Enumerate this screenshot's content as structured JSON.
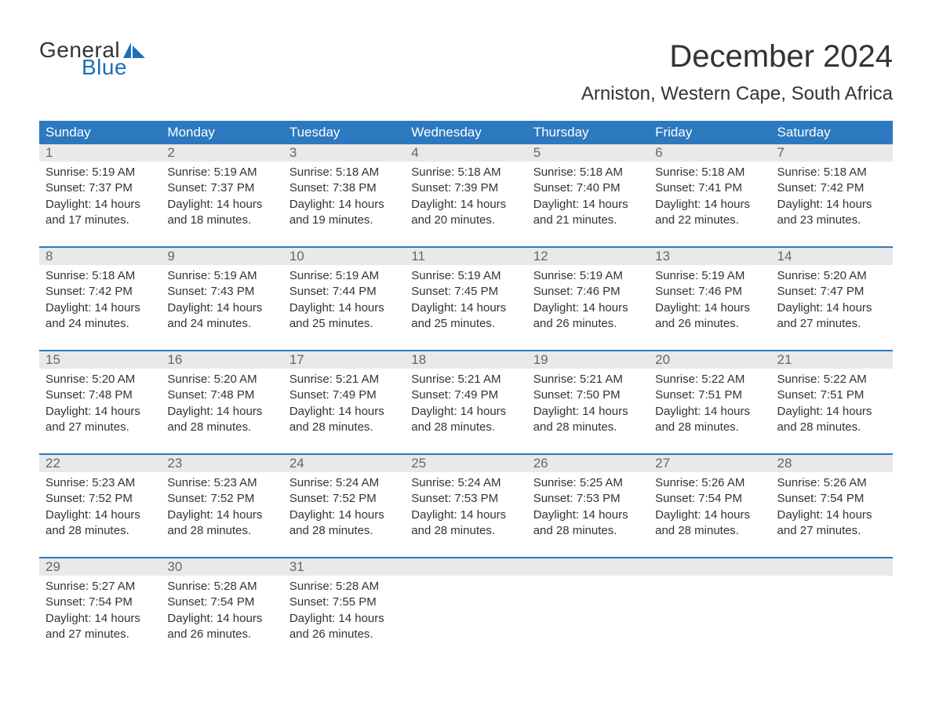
{
  "logo": {
    "text1": "General",
    "text2": "Blue",
    "flag_color": "#1c6fb8"
  },
  "title": "December 2024",
  "subtitle": "Arniston, Western Cape, South Africa",
  "header_bg": "#2d79c0",
  "header_fg": "#ffffff",
  "daynum_bg": "#e9e9e9",
  "daynum_fg": "#666666",
  "border_color": "#2d79c0",
  "text_color": "#333333",
  "day_headers": [
    "Sunday",
    "Monday",
    "Tuesday",
    "Wednesday",
    "Thursday",
    "Friday",
    "Saturday"
  ],
  "weeks": [
    [
      {
        "n": "1",
        "sunrise": "Sunrise: 5:19 AM",
        "sunset": "Sunset: 7:37 PM",
        "d1": "Daylight: 14 hours",
        "d2": "and 17 minutes."
      },
      {
        "n": "2",
        "sunrise": "Sunrise: 5:19 AM",
        "sunset": "Sunset: 7:37 PM",
        "d1": "Daylight: 14 hours",
        "d2": "and 18 minutes."
      },
      {
        "n": "3",
        "sunrise": "Sunrise: 5:18 AM",
        "sunset": "Sunset: 7:38 PM",
        "d1": "Daylight: 14 hours",
        "d2": "and 19 minutes."
      },
      {
        "n": "4",
        "sunrise": "Sunrise: 5:18 AM",
        "sunset": "Sunset: 7:39 PM",
        "d1": "Daylight: 14 hours",
        "d2": "and 20 minutes."
      },
      {
        "n": "5",
        "sunrise": "Sunrise: 5:18 AM",
        "sunset": "Sunset: 7:40 PM",
        "d1": "Daylight: 14 hours",
        "d2": "and 21 minutes."
      },
      {
        "n": "6",
        "sunrise": "Sunrise: 5:18 AM",
        "sunset": "Sunset: 7:41 PM",
        "d1": "Daylight: 14 hours",
        "d2": "and 22 minutes."
      },
      {
        "n": "7",
        "sunrise": "Sunrise: 5:18 AM",
        "sunset": "Sunset: 7:42 PM",
        "d1": "Daylight: 14 hours",
        "d2": "and 23 minutes."
      }
    ],
    [
      {
        "n": "8",
        "sunrise": "Sunrise: 5:18 AM",
        "sunset": "Sunset: 7:42 PM",
        "d1": "Daylight: 14 hours",
        "d2": "and 24 minutes."
      },
      {
        "n": "9",
        "sunrise": "Sunrise: 5:19 AM",
        "sunset": "Sunset: 7:43 PM",
        "d1": "Daylight: 14 hours",
        "d2": "and 24 minutes."
      },
      {
        "n": "10",
        "sunrise": "Sunrise: 5:19 AM",
        "sunset": "Sunset: 7:44 PM",
        "d1": "Daylight: 14 hours",
        "d2": "and 25 minutes."
      },
      {
        "n": "11",
        "sunrise": "Sunrise: 5:19 AM",
        "sunset": "Sunset: 7:45 PM",
        "d1": "Daylight: 14 hours",
        "d2": "and 25 minutes."
      },
      {
        "n": "12",
        "sunrise": "Sunrise: 5:19 AM",
        "sunset": "Sunset: 7:46 PM",
        "d1": "Daylight: 14 hours",
        "d2": "and 26 minutes."
      },
      {
        "n": "13",
        "sunrise": "Sunrise: 5:19 AM",
        "sunset": "Sunset: 7:46 PM",
        "d1": "Daylight: 14 hours",
        "d2": "and 26 minutes."
      },
      {
        "n": "14",
        "sunrise": "Sunrise: 5:20 AM",
        "sunset": "Sunset: 7:47 PM",
        "d1": "Daylight: 14 hours",
        "d2": "and 27 minutes."
      }
    ],
    [
      {
        "n": "15",
        "sunrise": "Sunrise: 5:20 AM",
        "sunset": "Sunset: 7:48 PM",
        "d1": "Daylight: 14 hours",
        "d2": "and 27 minutes."
      },
      {
        "n": "16",
        "sunrise": "Sunrise: 5:20 AM",
        "sunset": "Sunset: 7:48 PM",
        "d1": "Daylight: 14 hours",
        "d2": "and 28 minutes."
      },
      {
        "n": "17",
        "sunrise": "Sunrise: 5:21 AM",
        "sunset": "Sunset: 7:49 PM",
        "d1": "Daylight: 14 hours",
        "d2": "and 28 minutes."
      },
      {
        "n": "18",
        "sunrise": "Sunrise: 5:21 AM",
        "sunset": "Sunset: 7:49 PM",
        "d1": "Daylight: 14 hours",
        "d2": "and 28 minutes."
      },
      {
        "n": "19",
        "sunrise": "Sunrise: 5:21 AM",
        "sunset": "Sunset: 7:50 PM",
        "d1": "Daylight: 14 hours",
        "d2": "and 28 minutes."
      },
      {
        "n": "20",
        "sunrise": "Sunrise: 5:22 AM",
        "sunset": "Sunset: 7:51 PM",
        "d1": "Daylight: 14 hours",
        "d2": "and 28 minutes."
      },
      {
        "n": "21",
        "sunrise": "Sunrise: 5:22 AM",
        "sunset": "Sunset: 7:51 PM",
        "d1": "Daylight: 14 hours",
        "d2": "and 28 minutes."
      }
    ],
    [
      {
        "n": "22",
        "sunrise": "Sunrise: 5:23 AM",
        "sunset": "Sunset: 7:52 PM",
        "d1": "Daylight: 14 hours",
        "d2": "and 28 minutes."
      },
      {
        "n": "23",
        "sunrise": "Sunrise: 5:23 AM",
        "sunset": "Sunset: 7:52 PM",
        "d1": "Daylight: 14 hours",
        "d2": "and 28 minutes."
      },
      {
        "n": "24",
        "sunrise": "Sunrise: 5:24 AM",
        "sunset": "Sunset: 7:52 PM",
        "d1": "Daylight: 14 hours",
        "d2": "and 28 minutes."
      },
      {
        "n": "25",
        "sunrise": "Sunrise: 5:24 AM",
        "sunset": "Sunset: 7:53 PM",
        "d1": "Daylight: 14 hours",
        "d2": "and 28 minutes."
      },
      {
        "n": "26",
        "sunrise": "Sunrise: 5:25 AM",
        "sunset": "Sunset: 7:53 PM",
        "d1": "Daylight: 14 hours",
        "d2": "and 28 minutes."
      },
      {
        "n": "27",
        "sunrise": "Sunrise: 5:26 AM",
        "sunset": "Sunset: 7:54 PM",
        "d1": "Daylight: 14 hours",
        "d2": "and 28 minutes."
      },
      {
        "n": "28",
        "sunrise": "Sunrise: 5:26 AM",
        "sunset": "Sunset: 7:54 PM",
        "d1": "Daylight: 14 hours",
        "d2": "and 27 minutes."
      }
    ],
    [
      {
        "n": "29",
        "sunrise": "Sunrise: 5:27 AM",
        "sunset": "Sunset: 7:54 PM",
        "d1": "Daylight: 14 hours",
        "d2": "and 27 minutes."
      },
      {
        "n": "30",
        "sunrise": "Sunrise: 5:28 AM",
        "sunset": "Sunset: 7:54 PM",
        "d1": "Daylight: 14 hours",
        "d2": "and 26 minutes."
      },
      {
        "n": "31",
        "sunrise": "Sunrise: 5:28 AM",
        "sunset": "Sunset: 7:55 PM",
        "d1": "Daylight: 14 hours",
        "d2": "and 26 minutes."
      },
      {
        "n": "",
        "sunrise": "",
        "sunset": "",
        "d1": "",
        "d2": ""
      },
      {
        "n": "",
        "sunrise": "",
        "sunset": "",
        "d1": "",
        "d2": ""
      },
      {
        "n": "",
        "sunrise": "",
        "sunset": "",
        "d1": "",
        "d2": ""
      },
      {
        "n": "",
        "sunrise": "",
        "sunset": "",
        "d1": "",
        "d2": ""
      }
    ]
  ]
}
